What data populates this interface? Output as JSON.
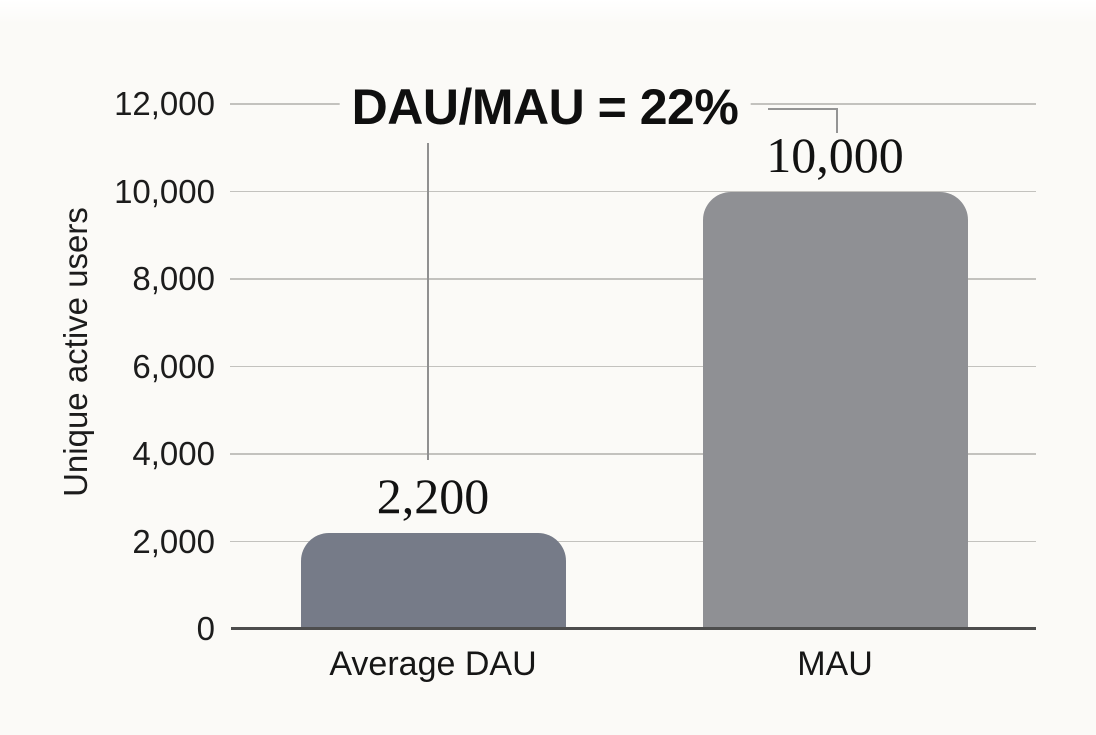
{
  "chart_data": {
    "type": "bar",
    "title": "DAU/MAU = 22%",
    "ylabel": "Unique active users",
    "xlabel": "",
    "categories": [
      "Average DAU",
      "MAU"
    ],
    "values": [
      2200,
      10000
    ],
    "value_labels": [
      "2,200",
      "10,000"
    ],
    "ylim": [
      0,
      12000
    ],
    "yticks": [
      0,
      2000,
      4000,
      6000,
      8000,
      10000,
      12000
    ],
    "ytick_labels": [
      "0",
      "2,000",
      "4,000",
      "6,000",
      "8,000",
      "10,000",
      "12,000"
    ],
    "grid": "horizontal",
    "legend_position": "none",
    "bar_colors": [
      "#767b88",
      "#8f9094"
    ]
  },
  "colors": {
    "background": "#fbfaf7",
    "gridline": "#c3c2be",
    "axis_line": "#4d4d4d",
    "leader_line": "#909090",
    "text": "#161616"
  }
}
